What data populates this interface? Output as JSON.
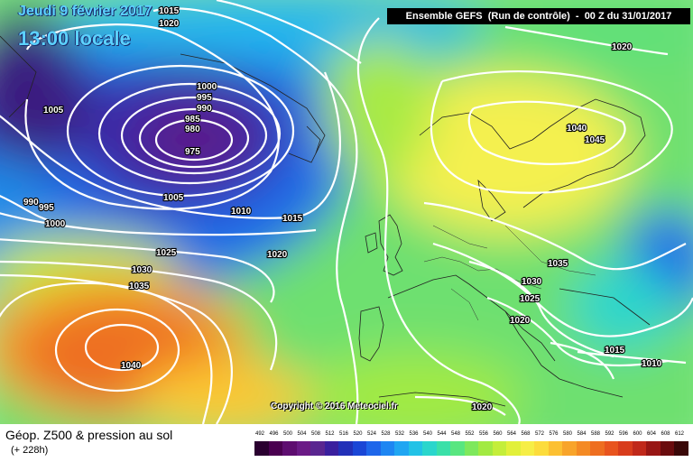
{
  "header": {
    "date": "Jeudi 9 février 2017",
    "local_time": "13:00 locale",
    "run_info": "Ensemble GEFS  (Run de contrôle)  -  00 Z du 31/01/2017"
  },
  "map": {
    "isobar_labels": [
      "1015",
      "1020",
      "1005",
      "1000",
      "995",
      "990",
      "985",
      "980",
      "975",
      "1005",
      "1010",
      "1015",
      "990",
      "995",
      "1000",
      "1020",
      "1025",
      "1030",
      "1035",
      "1040",
      "1020",
      "1040",
      "1045",
      "1035",
      "1030",
      "1025",
      "1020",
      "1015",
      "1010",
      "1020"
    ],
    "copyright": "Copyright © 2016 Meteociel.fr"
  },
  "footer": {
    "title": "Géop. Z500 & pression au sol",
    "lead_time": "(+ 228h)"
  },
  "scale": {
    "values": [
      "492",
      "496",
      "500",
      "504",
      "508",
      "512",
      "516",
      "520",
      "524",
      "528",
      "532",
      "536",
      "540",
      "544",
      "548",
      "552",
      "556",
      "560",
      "564",
      "568",
      "572",
      "576",
      "580",
      "584",
      "588",
      "592",
      "596",
      "600",
      "604",
      "608",
      "612"
    ],
    "colors": [
      "#2a0030",
      "#4a0050",
      "#5e0d70",
      "#6b1a86",
      "#5a2590",
      "#3a1f9e",
      "#2230b8",
      "#1a46d6",
      "#1e66ea",
      "#1e86f2",
      "#20a6f2",
      "#22c2e6",
      "#2ad6cc",
      "#3ae0a8",
      "#58e680",
      "#7ee85c",
      "#a2ea42",
      "#c4ee3a",
      "#e2f03a",
      "#f6ee46",
      "#fcdc3c",
      "#fcc032",
      "#f8a42a",
      "#f48a24",
      "#ee6e20",
      "#e8541e",
      "#d83c1c",
      "#c0281a",
      "#981614",
      "#6a0c0e",
      "#3a0808"
    ]
  }
}
